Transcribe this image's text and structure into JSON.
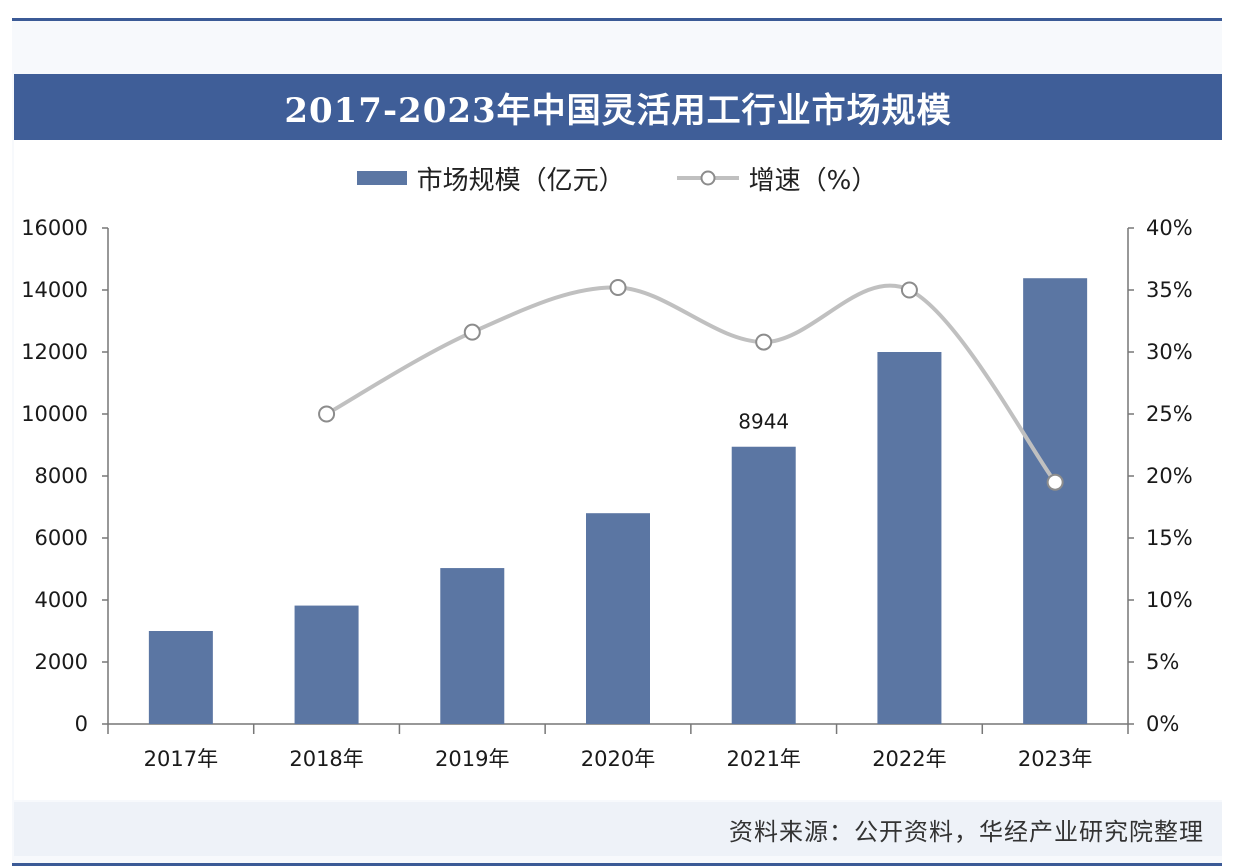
{
  "chart_data": {
    "type": "bar+line",
    "title": "2017-2023年中国灵活用工行业市场规模",
    "categories": [
      "2017年",
      "2018年",
      "2019年",
      "2020年",
      "2021年",
      "2022年",
      "2023年"
    ],
    "series": [
      {
        "name": "市场规模（亿元）",
        "type": "bar",
        "axis": "left",
        "values": [
          3000,
          3820,
          5030,
          6800,
          8944,
          12000,
          14380
        ]
      },
      {
        "name": "增速（%）",
        "type": "line",
        "axis": "right",
        "values": [
          null,
          25.0,
          31.6,
          35.2,
          30.8,
          35.0,
          19.5
        ]
      }
    ],
    "left_axis": {
      "ylim": [
        0,
        16000
      ],
      "ticks": [
        "0",
        "2000",
        "4000",
        "6000",
        "8000",
        "10000",
        "12000",
        "14000",
        "16000"
      ]
    },
    "right_axis": {
      "ylim": [
        0,
        40
      ],
      "ticks": [
        "0%",
        "5%",
        "10%",
        "15%",
        "20%",
        "25%",
        "30%",
        "35%",
        "40%"
      ]
    },
    "data_labels": [
      {
        "category": "2021年",
        "text": "8944"
      }
    ],
    "legend": "top-center",
    "grid": false,
    "colors": {
      "bar": "#5b76a3",
      "line": "#c0c0c0",
      "marker_fill": "#ffffff",
      "marker_stroke": "#8c8c8c"
    }
  },
  "source_text": "资料来源：公开资料，华经产业研究院整理"
}
